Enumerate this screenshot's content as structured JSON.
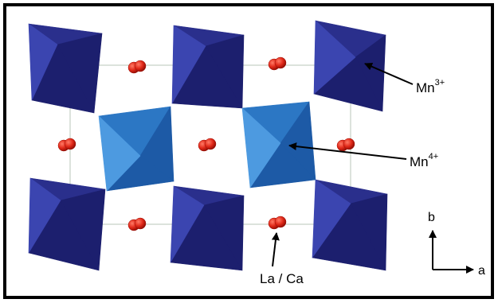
{
  "labels": {
    "mn3": {
      "element": "Mn",
      "charge": "3+"
    },
    "mn4": {
      "element": "Mn",
      "charge": "4+"
    },
    "site": "La / Ca"
  },
  "axes": {
    "a": "a",
    "b": "b"
  },
  "colors": {
    "frame": "#000000",
    "unit_cell": "#b9c7b9",
    "mn3_dark": "#1c1f6e",
    "mn3_mid": "#2a2f8c",
    "mn3_light": "#3b45b0",
    "mn4_dark": "#1d5aa6",
    "mn4_mid": "#2c77c4",
    "mn4_light": "#4d9ae0",
    "atom": "#e02818",
    "atom_shade": "#a01008"
  }
}
